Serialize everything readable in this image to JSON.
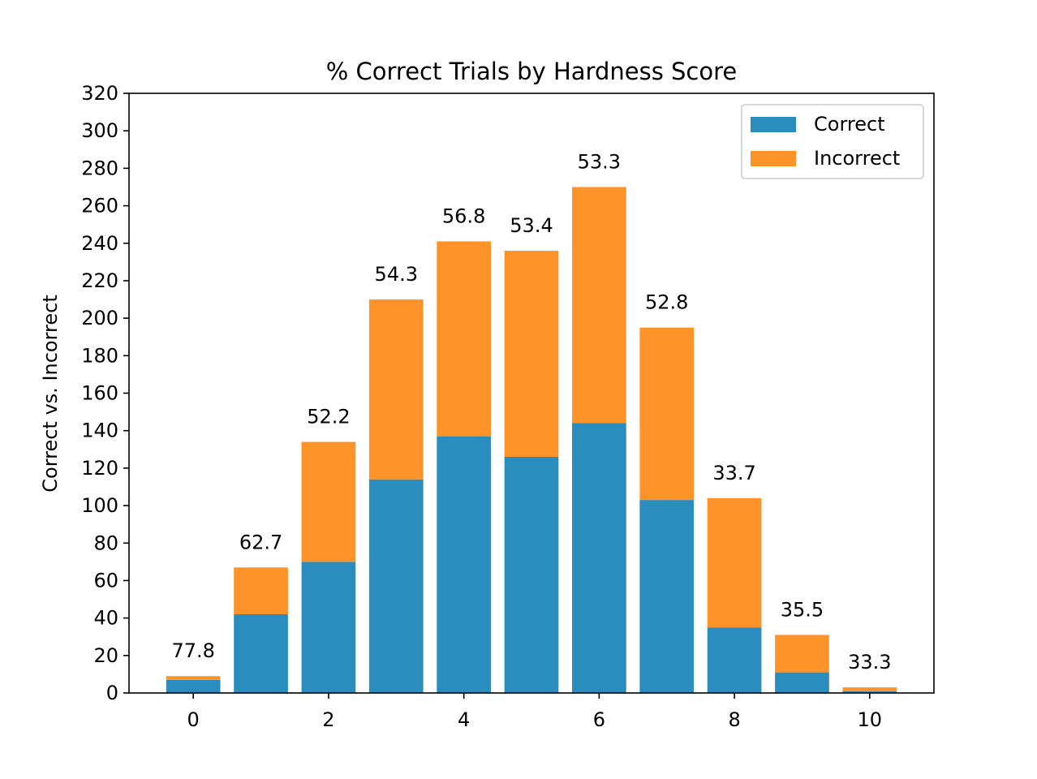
{
  "chart_data": {
    "type": "bar",
    "stacked": true,
    "title": "% Correct Trials by Hardness Score",
    "xlabel": "",
    "ylabel": "Correct vs. Incorrect",
    "x": [
      0,
      1,
      2,
      3,
      4,
      5,
      6,
      7,
      8,
      9,
      10
    ],
    "xticks": [
      "0",
      "2",
      "4",
      "6",
      "8",
      "10"
    ],
    "xlim": [
      -0.95,
      10.95
    ],
    "ylim": [
      0,
      320
    ],
    "yticks": [
      "0",
      "20",
      "40",
      "60",
      "80",
      "100",
      "120",
      "140",
      "160",
      "180",
      "200",
      "220",
      "240",
      "260",
      "280",
      "300",
      "320"
    ],
    "series": [
      {
        "name": "Correct",
        "color": "#2b8cbe",
        "values": [
          7,
          42,
          70,
          114,
          137,
          126,
          144,
          103,
          35,
          11,
          1
        ]
      },
      {
        "name": "Incorrect",
        "color": "#fe9429",
        "values": [
          2,
          25,
          64,
          96,
          104,
          110,
          126,
          92,
          69,
          20,
          2
        ]
      }
    ],
    "bar_labels": [
      "77.8",
      "62.7",
      "52.2",
      "54.3",
      "56.8",
      "53.4",
      "53.3",
      "52.8",
      "33.7",
      "35.5",
      "33.3"
    ],
    "legend": {
      "location": "top-right",
      "entries": [
        "Correct",
        "Incorrect"
      ]
    },
    "grid": false
  }
}
